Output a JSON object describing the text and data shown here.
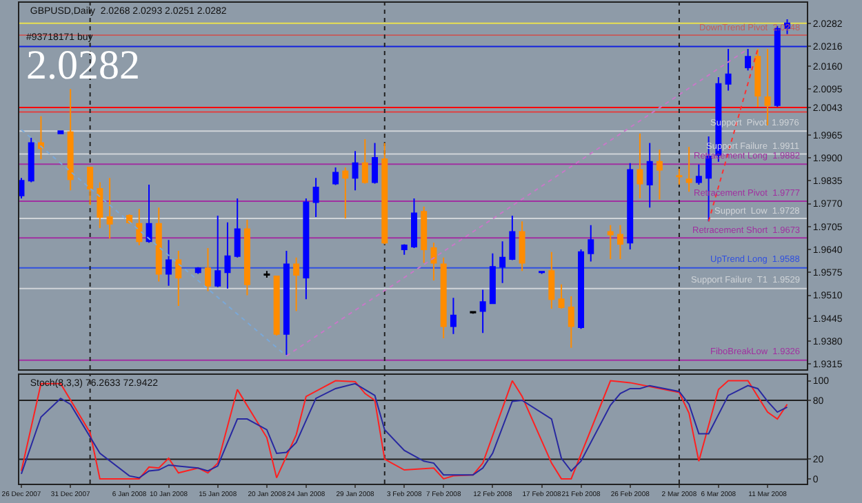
{
  "chart_data": [
    {
      "type": "candlestick",
      "title": "GBPUSD,Daily  2.0268 2.0293 2.0251 2.0282",
      "x": [
        "2007-12-26",
        "2007-12-27",
        "2007-12-28",
        "2007-12-30",
        "2007-12-31",
        "2008-01-02",
        "2008-01-03",
        "2008-01-04",
        "2008-01-06",
        "2008-01-07",
        "2008-01-08",
        "2008-01-09",
        "2008-01-10",
        "2008-01-11",
        "2008-01-13",
        "2008-01-14",
        "2008-01-15",
        "2008-01-16",
        "2008-01-17",
        "2008-01-18",
        "2008-01-20",
        "2008-01-21",
        "2008-01-22",
        "2008-01-23",
        "2008-01-24",
        "2008-01-25",
        "2008-01-27",
        "2008-01-28",
        "2008-01-29",
        "2008-01-30",
        "2008-01-31",
        "2008-02-01",
        "2008-02-03",
        "2008-02-04",
        "2008-02-05",
        "2008-02-06",
        "2008-02-07",
        "2008-02-08",
        "2008-02-10",
        "2008-02-11",
        "2008-02-12",
        "2008-02-13",
        "2008-02-14",
        "2008-02-15",
        "2008-02-17",
        "2008-02-18",
        "2008-02-19",
        "2008-02-20",
        "2008-02-21",
        "2008-02-22",
        "2008-02-24",
        "2008-02-25",
        "2008-02-26",
        "2008-02-27",
        "2008-02-28",
        "2008-02-29",
        "2008-03-02",
        "2008-03-03",
        "2008-03-04",
        "2008-03-05",
        "2008-03-06",
        "2008-03-07",
        "2008-03-09",
        "2008-03-10",
        "2008-03-11",
        "2008-03-12",
        "2008-03-13"
      ],
      "ohlc": [
        [
          1.9793,
          1.9843,
          1.9785,
          1.9835
        ],
        [
          1.9835,
          1.9957,
          1.9831,
          1.9942
        ],
        [
          1.9942,
          2.0018,
          1.9896,
          1.9927
        ],
        [
          1.9969,
          1.9978,
          1.9967,
          1.9976
        ],
        [
          1.9973,
          2.0095,
          1.9808,
          1.9839
        ],
        [
          1.9873,
          1.9873,
          1.9766,
          1.9812
        ],
        [
          1.9812,
          1.9831,
          1.9701,
          1.9732
        ],
        [
          1.9732,
          1.9843,
          1.9671,
          1.9713
        ],
        [
          1.9736,
          1.974,
          1.9713,
          1.9717
        ],
        [
          1.9713,
          1.9755,
          1.9652,
          1.9663
        ],
        [
          1.9663,
          1.9824,
          1.9659,
          1.9713
        ],
        [
          1.9713,
          1.9759,
          1.9549,
          1.9571
        ],
        [
          1.9571,
          1.9667,
          1.9537,
          1.961
        ],
        [
          1.961,
          1.9636,
          1.948,
          1.956
        ],
        [
          1.9575,
          1.959,
          1.9571,
          1.9587
        ],
        [
          1.9587,
          1.9644,
          1.9522,
          1.9537
        ],
        [
          1.9537,
          1.9736,
          1.9533,
          1.9579
        ],
        [
          1.9575,
          1.9717,
          1.9529,
          1.9621
        ],
        [
          1.9621,
          1.9785,
          1.9617,
          1.9698
        ],
        [
          1.9698,
          1.9724,
          1.951,
          1.9541
        ],
        [
          1.957,
          1.9579,
          1.956,
          1.9568
        ],
        [
          1.9564,
          1.9566,
          1.9396,
          1.94
        ],
        [
          1.94,
          1.9636,
          1.9338,
          1.9598
        ],
        [
          1.9598,
          1.9617,
          1.9465,
          1.9568
        ],
        [
          1.956,
          1.9785,
          1.9499,
          1.9774
        ],
        [
          1.9774,
          1.9843,
          1.9732,
          1.9816
        ],
        [
          1.9827,
          1.9873,
          1.9823,
          1.9858
        ],
        [
          1.9862,
          1.9873,
          1.9728,
          1.9843
        ],
        [
          1.9843,
          1.9919,
          1.9808,
          1.9885
        ],
        [
          1.9885,
          1.9953,
          1.9827,
          1.9831
        ],
        [
          1.9831,
          1.9942,
          1.9827,
          1.99
        ],
        [
          1.9896,
          1.9942,
          1.9655,
          1.9659
        ],
        [
          1.964,
          1.9655,
          1.9625,
          1.9652
        ],
        [
          1.9648,
          1.9785,
          1.9644,
          1.9743
        ],
        [
          1.9747,
          1.9762,
          1.9602,
          1.964
        ],
        [
          1.9644,
          1.9659,
          1.9552,
          1.9602
        ],
        [
          1.9598,
          1.9617,
          1.9388,
          1.9422
        ],
        [
          1.9422,
          1.9503,
          1.94,
          1.9453
        ],
        [
          1.9461,
          1.9465,
          1.9458,
          1.9463
        ],
        [
          1.9465,
          1.9526,
          1.9403,
          1.9491
        ],
        [
          1.9487,
          1.9629,
          1.9485,
          1.9591
        ],
        [
          1.9591,
          1.9663,
          1.9545,
          1.9617
        ],
        [
          1.9613,
          1.9736,
          1.961,
          1.969
        ],
        [
          1.969,
          1.972,
          1.9579,
          1.9602
        ],
        [
          1.9575,
          1.9579,
          1.9571,
          1.9577
        ],
        [
          1.9579,
          1.9633,
          1.9472,
          1.9499
        ],
        [
          1.9499,
          1.9541,
          1.9472,
          1.9476
        ],
        [
          1.9476,
          1.9507,
          1.9361,
          1.9422
        ],
        [
          1.9419,
          1.964,
          1.9415,
          1.9633
        ],
        [
          1.9629,
          1.9709,
          1.9606,
          1.9667
        ],
        [
          1.969,
          1.9709,
          1.9613,
          1.9682
        ],
        [
          1.9682,
          1.9709,
          1.9613,
          1.9656
        ],
        [
          1.9659,
          1.9885,
          1.964,
          1.9866
        ],
        [
          1.9866,
          1.9969,
          1.9785,
          1.9827
        ],
        [
          1.9824,
          1.9942,
          1.9759,
          1.9889
        ],
        [
          1.9889,
          1.9923,
          1.9782,
          1.9866
        ],
        [
          1.9849,
          1.9869,
          1.9824,
          1.9847
        ],
        [
          1.9839,
          1.9931,
          1.9804,
          1.9831
        ],
        [
          1.9831,
          1.9881,
          1.9824,
          1.9847
        ],
        [
          1.9843,
          1.9961,
          1.972,
          1.9904
        ],
        [
          1.9908,
          2.0129,
          1.9889,
          2.011
        ],
        [
          2.011,
          2.0209,
          2.0091,
          2.0137
        ],
        [
          2.0156,
          2.0209,
          2.0148,
          2.0187
        ],
        [
          2.0187,
          2.0209,
          2.0045,
          2.0076
        ],
        [
          2.0072,
          2.0209,
          1.9992,
          2.0049
        ],
        [
          2.0049,
          2.0274,
          2.0045,
          2.0266
        ],
        [
          2.0268,
          2.0293,
          2.0251,
          2.0282
        ]
      ],
      "colors": [
        "#0000ff",
        "#0000ff",
        "#ff8c00",
        "#0000ff",
        "#ff8c00",
        "#ff8c00",
        "#ff8c00",
        "#ff8c00",
        "#ff8c00",
        "#ff8c00",
        "#0000ff",
        "#ff8c00",
        "#0000ff",
        "#ff8c00",
        "#0000ff",
        "#ff8c00",
        "#0000ff",
        "#0000ff",
        "#0000ff",
        "#ff8c00",
        "#000000",
        "#ff8c00",
        "#0000ff",
        "#ff8c00",
        "#0000ff",
        "#0000ff",
        "#0000ff",
        "#ff8c00",
        "#0000ff",
        "#ff8c00",
        "#0000ff",
        "#ff8c00",
        "#0000ff",
        "#0000ff",
        "#ff8c00",
        "#ff8c00",
        "#ff8c00",
        "#0000ff",
        "#000000",
        "#0000ff",
        "#0000ff",
        "#0000ff",
        "#0000ff",
        "#ff8c00",
        "#0000ff",
        "#ff8c00",
        "#ff8c00",
        "#ff8c00",
        "#0000ff",
        "#0000ff",
        "#ff8c00",
        "#ff8c00",
        "#0000ff",
        "#ff8c00",
        "#0000ff",
        "#ff8c00",
        "#ff8c00",
        "#ff8c00",
        "#0000ff",
        "#0000ff",
        "#0000ff",
        "#0000ff",
        "#0000ff",
        "#ff8c00",
        "#ff8c00",
        "#0000ff",
        "#0000ff"
      ],
      "series": [
        {
          "type": "line",
          "color": "#7aa8d8",
          "line_style": "dotted",
          "x": [
            "2007-12-26",
            "2008-01-22"
          ],
          "values": [
            1.998,
            1.9338
          ]
        },
        {
          "type": "line",
          "color": "#c878c8",
          "line_style": "dotted",
          "x": [
            "2008-01-22",
            "2008-03-09"
          ],
          "values": [
            1.9338,
            2.0209
          ]
        },
        {
          "type": "line",
          "color": "#ff3030",
          "line_style": "dotted",
          "x": [
            "2008-03-05",
            "2008-03-10"
          ],
          "values": [
            1.972,
            2.0209
          ]
        }
      ],
      "xlim": [
        "2007-12-25T19:00",
        "2008-03-15T00:00"
      ],
      "ylim": [
        1.93,
        2.034
      ],
      "yticks": [
        1.9315,
        {
          "value": 1.938,
          "label": "1.9380"
        },
        1.9445,
        {
          "value": 1.951,
          "label": "1.9510"
        },
        1.9575,
        {
          "value": 1.964,
          "label": "1.9640"
        },
        1.9705,
        {
          "value": 1.977,
          "label": "1.9770"
        },
        1.9835,
        {
          "value": 1.99,
          "label": "1.9900"
        },
        1.9965,
        2.0043,
        2.0095,
        {
          "value": 2.016,
          "label": "2.0160"
        },
        2.0216,
        2.0282
      ],
      "tick_labels": "y",
      "annotations": [
        "#93718171 buy",
        "2.0282"
      ],
      "ref_lines": [
        {
          "axis": "y",
          "value": 2.0282,
          "color": "#e8e050"
        },
        {
          "axis": "y",
          "value": 2.0248,
          "label": "DownTrend Pivot  2.0248",
          "color": "#c06060"
        },
        {
          "axis": "y",
          "value": 2.0216,
          "color": "#1020e0"
        },
        {
          "axis": "y",
          "value": 2.0043,
          "color": "#ff0000"
        },
        {
          "axis": "y",
          "value": 2.003,
          "color": "#e04040"
        },
        {
          "axis": "y",
          "value": 1.9976,
          "label": "Support  Pivot  1.9976",
          "color": "#d0d4d8"
        },
        {
          "axis": "y",
          "value": 1.9911,
          "label": "Support Failure  1.9911",
          "color": "#d0d4d8"
        },
        {
          "axis": "y",
          "value": 1.9882,
          "label": "Retracement Long  1.9882",
          "color": "#a030a0"
        },
        {
          "axis": "y",
          "value": 1.9777,
          "label": "Retracement Pivot  1.9777",
          "color": "#a030a0"
        },
        {
          "axis": "y",
          "value": 1.9728,
          "label": "Support  Low  1.9728",
          "color": "#d0d4d8"
        },
        {
          "axis": "y",
          "value": 1.9673,
          "label": "Retracement Short  1.9673",
          "color": "#a030a0"
        },
        {
          "axis": "y",
          "value": 1.9588,
          "label": "UpTrend Long  1.9588",
          "color": "#3050e0"
        },
        {
          "axis": "y",
          "value": 1.9529,
          "label": "Support Failure  T1  1.9529",
          "color": "#d0d4d8"
        },
        {
          "axis": "y",
          "value": 1.9326,
          "label": "FiboBreakLow  1.9326",
          "color": "#a030a0"
        },
        {
          "axis": "x",
          "value": "2008-01-02",
          "color": "#202020",
          "line_style": "dotted"
        },
        {
          "axis": "x",
          "value": "2008-02-01",
          "color": "#202020",
          "line_style": "dotted"
        },
        {
          "axis": "x",
          "value": "2008-03-02",
          "color": "#202020",
          "line_style": "dotted"
        }
      ]
    },
    {
      "type": "line",
      "title": "Stoch(8,3,3) 76.2633 72.9422",
      "xlim": [
        "2007-12-25T19:00",
        "2008-03-15T00:00"
      ],
      "xticks": [
        {
          "value": "2007-12-26",
          "label": "26 Dec 2007"
        },
        {
          "value": "2007-12-31",
          "label": "31 Dec 2007"
        },
        {
          "value": "2008-01-06",
          "label": "6 Jan 2008"
        },
        {
          "value": "2008-01-10",
          "label": "10 Jan 2008"
        },
        {
          "value": "2008-01-15",
          "label": "15 Jan 2008"
        },
        {
          "value": "2008-01-20",
          "label": "20 Jan 2008"
        },
        {
          "value": "2008-01-24",
          "label": "24 Jan 2008"
        },
        {
          "value": "2008-01-29",
          "label": "29 Jan 2008"
        },
        {
          "value": "2008-02-03",
          "label": "3 Feb 2008"
        },
        {
          "value": "2008-02-07",
          "label": "7 Feb 2008"
        },
        {
          "value": "2008-02-12",
          "label": "12 Feb 2008"
        },
        {
          "value": "2008-02-17",
          "label": "17 Feb 2008"
        },
        {
          "value": "2008-02-21",
          "label": "21 Feb 2008"
        },
        {
          "value": "2008-02-26",
          "label": "26 Feb 2008"
        },
        {
          "value": "2008-03-02",
          "label": "2 Mar 2008"
        },
        {
          "value": "2008-03-06",
          "label": "6 Mar 2008"
        },
        {
          "value": "2008-03-11",
          "label": "11 Mar 2008"
        }
      ],
      "ylim": [
        -5,
        106
      ],
      "yticks": [
        0,
        20,
        80,
        100
      ],
      "series": [
        {
          "color": "#ff2020",
          "x": [
            "2007-12-26",
            "2007-12-28",
            "2007-12-30",
            "2008-01-02",
            "2008-01-03",
            "2008-01-07",
            "2008-01-08",
            "2008-01-09",
            "2008-01-10",
            "2008-01-11",
            "2008-01-13",
            "2008-01-14",
            "2008-01-15",
            "2008-01-17",
            "2008-01-20",
            "2008-01-21",
            "2008-01-23",
            "2008-01-24",
            "2008-01-27",
            "2008-01-29",
            "2008-01-30",
            "2008-01-31",
            "2008-02-01",
            "2008-02-03",
            "2008-02-06",
            "2008-02-07",
            "2008-02-08",
            "2008-02-10",
            "2008-02-11",
            "2008-02-14",
            "2008-02-15",
            "2008-02-18",
            "2008-02-19",
            "2008-02-20",
            "2008-02-24",
            "2008-02-25",
            "2008-02-26",
            "2008-02-28",
            "2008-03-02",
            "2008-03-03",
            "2008-03-04",
            "2008-03-06",
            "2008-03-07",
            "2008-03-09",
            "2008-03-11",
            "2008-03-12",
            "2008-03-13"
          ],
          "values": [
            8,
            97,
            97,
            47,
            0,
            0,
            12,
            11,
            21,
            6,
            11,
            6,
            16,
            91,
            42,
            1,
            45,
            84,
            100,
            99,
            87,
            80,
            20,
            9,
            11,
            0,
            3,
            4,
            16,
            100,
            84,
            16,
            0,
            0,
            100,
            99,
            98,
            94,
            88,
            67,
            18,
            91,
            100,
            100,
            68,
            61,
            76
          ]
        },
        {
          "color": "#2828a0",
          "x": [
            "2007-12-26",
            "2007-12-28",
            "2007-12-30",
            "2007-12-31",
            "2008-01-03",
            "2008-01-06",
            "2008-01-07",
            "2008-01-08",
            "2008-01-09",
            "2008-01-10",
            "2008-01-13",
            "2008-01-14",
            "2008-01-15",
            "2008-01-17",
            "2008-01-18",
            "2008-01-20",
            "2008-01-21",
            "2008-01-22",
            "2008-01-23",
            "2008-01-25",
            "2008-01-27",
            "2008-01-29",
            "2008-01-31",
            "2008-02-01",
            "2008-02-03",
            "2008-02-05",
            "2008-02-06",
            "2008-02-07",
            "2008-02-10",
            "2008-02-11",
            "2008-02-12",
            "2008-02-14",
            "2008-02-15",
            "2008-02-18",
            "2008-02-19",
            "2008-02-20",
            "2008-02-21",
            "2008-02-24",
            "2008-02-25",
            "2008-02-26",
            "2008-02-27",
            "2008-02-28",
            "2008-03-02",
            "2008-03-03",
            "2008-03-04",
            "2008-03-05",
            "2008-03-07",
            "2008-03-09",
            "2008-03-10",
            "2008-03-11",
            "2008-03-12",
            "2008-03-13"
          ],
          "values": [
            5,
            63,
            82,
            76,
            26,
            3,
            1,
            8,
            9,
            14,
            11,
            8,
            13,
            61,
            61,
            50,
            26,
            27,
            37,
            82,
            92,
            97,
            85,
            50,
            29,
            18,
            16,
            4,
            4,
            11,
            26,
            79,
            80,
            61,
            21,
            8,
            18,
            75,
            87,
            92,
            92,
            95,
            89,
            76,
            46,
            46,
            85,
            95,
            92,
            79,
            68,
            73
          ]
        }
      ],
      "ref_lines": [
        {
          "axis": "y",
          "value": 80,
          "color": "#202020"
        },
        {
          "axis": "y",
          "value": 20,
          "color": "#202020"
        },
        {
          "axis": "x",
          "value": "2008-01-02",
          "color": "#202020",
          "line_style": "dotted"
        },
        {
          "axis": "x",
          "value": "2008-02-01",
          "color": "#202020",
          "line_style": "dotted"
        },
        {
          "axis": "x",
          "value": "2008-03-02",
          "color": "#202020",
          "line_style": "dotted"
        }
      ]
    }
  ]
}
